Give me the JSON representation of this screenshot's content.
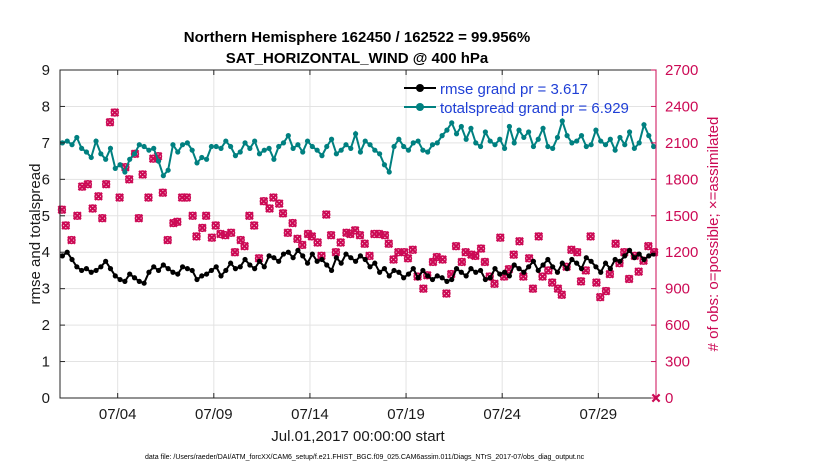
{
  "chart_data": {
    "type": "line",
    "title": "Northern Hemisphere 162450 / 162522 = 99.956%",
    "subtitle": "SAT_HORIZONTAL_WIND @ 400 hPa",
    "xlabel": "Jul.01,2017 00:00:00 start",
    "ylabel": "rmse and totalspread",
    "ylabel_right": "# of obs: o=possible; ×=assimilated",
    "footer": "data file: /Users/raeder/DAI/ATM_forcXX/CAM6_setup/f.e21.FHIST_BGC.f09_025.CAM6assim.011/Diags_NTrS_2017-07/obs_diag_output.nc",
    "xlim": [
      1.0,
      32.0
    ],
    "ylim": [
      0,
      9
    ],
    "ylim_right": [
      0,
      2700
    ],
    "x_ticks": [
      4,
      9,
      14,
      19,
      24,
      29
    ],
    "x_tick_labels": [
      "07/04",
      "07/09",
      "07/14",
      "07/19",
      "07/24",
      "07/29"
    ],
    "y_ticks": [
      0,
      1,
      2,
      3,
      4,
      5,
      6,
      7,
      8,
      9
    ],
    "y_ticks_right": [
      0,
      300,
      600,
      900,
      1200,
      1500,
      1800,
      2100,
      2400,
      2700
    ],
    "grid": true,
    "legend_position": "top-right",
    "colors": {
      "rmse": "#000000",
      "totalspread": "#008080",
      "obs": "#cc0a55",
      "legend_text": "#1f3fd6"
    },
    "series": [
      {
        "name": "rmse grand pr = 3.617",
        "axis": "left",
        "x": [
          1.125,
          1.375,
          1.625,
          1.875,
          2.125,
          2.375,
          2.625,
          2.875,
          3.125,
          3.375,
          3.625,
          3.875,
          4.125,
          4.375,
          4.625,
          4.875,
          5.125,
          5.375,
          5.625,
          5.875,
          6.125,
          6.375,
          6.625,
          6.875,
          7.125,
          7.375,
          7.625,
          7.875,
          8.125,
          8.375,
          8.625,
          8.875,
          9.125,
          9.375,
          9.625,
          9.875,
          10.125,
          10.375,
          10.625,
          10.875,
          11.125,
          11.375,
          11.625,
          11.875,
          12.125,
          12.375,
          12.625,
          12.875,
          13.125,
          13.375,
          13.625,
          13.875,
          14.125,
          14.375,
          14.625,
          14.875,
          15.125,
          15.375,
          15.625,
          15.875,
          16.125,
          16.375,
          16.625,
          16.875,
          17.125,
          17.375,
          17.625,
          17.875,
          18.125,
          18.375,
          18.625,
          18.875,
          19.125,
          19.375,
          19.625,
          19.875,
          20.125,
          20.375,
          20.625,
          20.875,
          21.125,
          21.375,
          21.625,
          21.875,
          22.125,
          22.375,
          22.625,
          22.875,
          23.125,
          23.375,
          23.625,
          23.875,
          24.125,
          24.375,
          24.625,
          24.875,
          25.125,
          25.375,
          25.625,
          25.875,
          26.125,
          26.375,
          26.625,
          26.875,
          27.125,
          27.375,
          27.625,
          27.875,
          28.125,
          28.375,
          28.625,
          28.875,
          29.125,
          29.375,
          29.625,
          29.875,
          30.125,
          30.375,
          30.625,
          30.875,
          31.125,
          31.375,
          31.625,
          31.875
        ],
        "values": [
          3.9,
          4.0,
          3.8,
          3.6,
          3.5,
          3.55,
          3.45,
          3.5,
          3.6,
          3.75,
          3.55,
          3.35,
          3.25,
          3.2,
          3.4,
          3.3,
          3.2,
          3.15,
          3.45,
          3.6,
          3.5,
          3.65,
          3.55,
          3.45,
          3.4,
          3.6,
          3.55,
          3.5,
          3.25,
          3.35,
          3.4,
          3.5,
          3.6,
          3.35,
          3.5,
          3.7,
          3.55,
          3.6,
          3.8,
          3.65,
          3.55,
          3.75,
          3.6,
          3.9,
          3.85,
          3.75,
          3.95,
          4.0,
          3.85,
          4.05,
          3.9,
          3.7,
          3.95,
          3.75,
          3.8,
          3.65,
          3.5,
          3.85,
          3.7,
          3.95,
          3.85,
          3.75,
          3.9,
          3.8,
          3.6,
          3.7,
          3.45,
          3.55,
          3.35,
          3.5,
          3.45,
          3.3,
          3.4,
          3.55,
          3.3,
          3.5,
          3.35,
          3.25,
          3.35,
          3.3,
          3.2,
          3.25,
          3.55,
          3.45,
          3.35,
          3.55,
          3.45,
          3.5,
          3.25,
          3.3,
          3.55,
          3.4,
          3.45,
          3.35,
          3.65,
          3.55,
          3.45,
          3.6,
          3.75,
          3.5,
          3.65,
          3.8,
          3.6,
          3.45,
          3.7,
          3.55,
          3.8,
          3.7,
          3.55,
          3.85,
          3.75,
          3.6,
          3.45,
          3.7,
          3.55,
          3.8,
          3.75,
          3.9,
          4.05,
          3.85,
          3.95,
          3.8,
          3.9,
          3.95
        ]
      },
      {
        "name": "totalspread grand pr = 6.929",
        "axis": "left",
        "x": [
          1.125,
          1.375,
          1.625,
          1.875,
          2.125,
          2.375,
          2.625,
          2.875,
          3.125,
          3.375,
          3.625,
          3.875,
          4.125,
          4.375,
          4.625,
          4.875,
          5.125,
          5.375,
          5.625,
          5.875,
          6.125,
          6.375,
          6.625,
          6.875,
          7.125,
          7.375,
          7.625,
          7.875,
          8.125,
          8.375,
          8.625,
          8.875,
          9.125,
          9.375,
          9.625,
          9.875,
          10.125,
          10.375,
          10.625,
          10.875,
          11.125,
          11.375,
          11.625,
          11.875,
          12.125,
          12.375,
          12.625,
          12.875,
          13.125,
          13.375,
          13.625,
          13.875,
          14.125,
          14.375,
          14.625,
          14.875,
          15.125,
          15.375,
          15.625,
          15.875,
          16.125,
          16.375,
          16.625,
          16.875,
          17.125,
          17.375,
          17.625,
          17.875,
          18.125,
          18.375,
          18.625,
          18.875,
          19.125,
          19.375,
          19.625,
          19.875,
          20.125,
          20.375,
          20.625,
          20.875,
          21.125,
          21.375,
          21.625,
          21.875,
          22.125,
          22.375,
          22.625,
          22.875,
          23.125,
          23.375,
          23.625,
          23.875,
          24.125,
          24.375,
          24.625,
          24.875,
          25.125,
          25.375,
          25.625,
          25.875,
          26.125,
          26.375,
          26.625,
          26.875,
          27.125,
          27.375,
          27.625,
          27.875,
          28.125,
          28.375,
          28.625,
          28.875,
          29.125,
          29.375,
          29.625,
          29.875,
          30.125,
          30.375,
          30.625,
          30.875,
          31.125,
          31.375,
          31.625,
          31.875
        ],
        "values": [
          7.0,
          7.05,
          6.95,
          7.15,
          6.85,
          6.75,
          6.6,
          7.05,
          6.7,
          6.55,
          6.85,
          6.3,
          6.4,
          6.2,
          6.55,
          6.7,
          6.95,
          6.9,
          6.8,
          6.85,
          6.5,
          6.1,
          6.25,
          6.95,
          6.75,
          6.95,
          7.0,
          6.8,
          6.45,
          6.6,
          6.55,
          6.9,
          6.9,
          6.85,
          7.05,
          6.9,
          6.65,
          6.75,
          7.0,
          6.85,
          7.05,
          6.7,
          6.8,
          6.85,
          6.55,
          6.9,
          7.0,
          7.2,
          6.85,
          6.95,
          6.75,
          7.05,
          6.9,
          6.8,
          6.65,
          6.9,
          7.1,
          6.7,
          6.8,
          6.95,
          6.85,
          7.25,
          6.75,
          7.05,
          6.95,
          6.8,
          6.7,
          6.4,
          6.2,
          6.9,
          7.1,
          6.9,
          6.8,
          7.0,
          7.05,
          6.8,
          6.75,
          6.95,
          7.0,
          7.2,
          7.35,
          7.55,
          7.25,
          7.45,
          7.1,
          7.4,
          7.0,
          6.9,
          7.3,
          7.05,
          6.95,
          7.1,
          6.85,
          7.45,
          7.0,
          7.35,
          7.15,
          7.3,
          6.9,
          7.1,
          7.4,
          6.9,
          6.85,
          7.15,
          7.6,
          7.2,
          7.0,
          7.05,
          7.2,
          6.9,
          6.95,
          7.35,
          7.05,
          6.95,
          7.1,
          6.8,
          7.15,
          6.95,
          7.3,
          6.85,
          7.0,
          7.5,
          7.2,
          6.9
        ]
      },
      {
        "name": "obs possible",
        "axis": "right",
        "x": [
          1.1,
          1.3,
          1.6,
          1.9,
          2.15,
          2.45,
          2.7,
          3.0,
          3.2,
          3.4,
          3.6,
          3.85,
          4.1,
          4.4,
          4.6,
          4.9,
          5.1,
          5.3,
          5.6,
          5.85,
          6.1,
          6.35,
          6.6,
          6.9,
          7.1,
          7.35,
          7.6,
          7.9,
          8.1,
          8.4,
          8.6,
          8.9,
          9.1,
          9.35,
          9.6,
          9.9,
          10.1,
          10.4,
          10.6,
          10.85,
          11.1,
          11.35,
          11.6,
          11.9,
          12.1,
          12.4,
          12.6,
          12.85,
          13.1,
          13.35,
          13.6,
          13.9,
          14.1,
          14.4,
          14.6,
          14.85,
          15.1,
          15.35,
          15.6,
          15.9,
          16.1,
          16.35,
          16.6,
          16.85,
          17.1,
          17.35,
          17.6,
          17.9,
          18.1,
          18.35,
          18.6,
          18.9,
          19.1,
          19.35,
          19.6,
          19.9,
          20.1,
          20.4,
          20.6,
          20.9,
          21.1,
          21.35,
          21.6,
          21.9,
          22.1,
          22.4,
          22.6,
          22.9,
          23.1,
          23.35,
          23.6,
          23.9,
          24.1,
          24.35,
          24.6,
          24.9,
          25.1,
          25.4,
          25.6,
          25.9,
          26.1,
          26.4,
          26.6,
          26.9,
          27.1,
          27.35,
          27.6,
          27.9,
          28.1,
          28.35,
          28.6,
          28.9,
          29.1,
          29.4,
          29.6,
          29.9,
          30.1,
          30.35,
          30.6,
          30.9,
          31.1,
          31.35,
          31.6,
          31.9
        ],
        "values": [
          1550,
          1420,
          1300,
          1500,
          1740,
          1760,
          1560,
          1660,
          1480,
          1760,
          2270,
          2350,
          1650,
          1900,
          1800,
          2010,
          1480,
          1840,
          1650,
          1970,
          1990,
          1690,
          1300,
          1440,
          1450,
          1650,
          1650,
          1500,
          1330,
          1400,
          1500,
          1320,
          1420,
          1350,
          1340,
          1360,
          1200,
          1300,
          1250,
          1500,
          1420,
          1150,
          1620,
          1560,
          1650,
          1600,
          1520,
          1360,
          1440,
          1310,
          1260,
          1350,
          1330,
          1280,
          1170,
          1510,
          1340,
          1200,
          1280,
          1360,
          1350,
          1380,
          1340,
          1270,
          1170,
          1350,
          1350,
          1340,
          1270,
          1140,
          1200,
          1200,
          1150,
          1220,
          1000,
          900,
          1010,
          1120,
          1160,
          1140,
          860,
          1020,
          1250,
          1120,
          1200,
          1180,
          1170,
          1230,
          1120,
          1000,
          940,
          1320,
          1000,
          1060,
          1180,
          1290,
          1000,
          1150,
          900,
          1330,
          1000,
          1050,
          950,
          900,
          850,
          1080,
          1220,
          1200,
          960,
          1050,
          1330,
          950,
          830,
          880,
          1020,
          1270,
          1110,
          1200,
          980,
          1170,
          1040,
          1130,
          1250,
          1200
        ],
        "marker": "o"
      },
      {
        "name": "obs assimilated",
        "axis": "right",
        "x": [
          1.1,
          1.3,
          1.6,
          1.9,
          2.15,
          2.45,
          2.7,
          3.0,
          3.2,
          3.4,
          3.6,
          3.85,
          4.1,
          4.4,
          4.6,
          4.9,
          5.1,
          5.3,
          5.6,
          5.85,
          6.1,
          6.35,
          6.6,
          6.9,
          7.1,
          7.35,
          7.6,
          7.9,
          8.1,
          8.4,
          8.6,
          8.9,
          9.1,
          9.35,
          9.6,
          9.9,
          10.1,
          10.4,
          10.6,
          10.85,
          11.1,
          11.35,
          11.6,
          11.9,
          12.1,
          12.4,
          12.6,
          12.85,
          13.1,
          13.35,
          13.6,
          13.9,
          14.1,
          14.4,
          14.6,
          14.85,
          15.1,
          15.35,
          15.6,
          15.9,
          16.1,
          16.35,
          16.6,
          16.85,
          17.1,
          17.35,
          17.6,
          17.9,
          18.1,
          18.35,
          18.6,
          18.9,
          19.1,
          19.35,
          19.6,
          19.9,
          20.1,
          20.4,
          20.6,
          20.9,
          21.1,
          21.35,
          21.6,
          21.9,
          22.1,
          22.4,
          22.6,
          22.9,
          23.1,
          23.35,
          23.6,
          23.9,
          24.1,
          24.35,
          24.6,
          24.9,
          25.1,
          25.4,
          25.6,
          25.9,
          26.1,
          26.4,
          26.6,
          26.9,
          27.1,
          27.35,
          27.6,
          27.9,
          28.1,
          28.35,
          28.6,
          28.9,
          29.1,
          29.4,
          29.6,
          29.9,
          30.1,
          30.35,
          30.6,
          30.9,
          31.1,
          31.35,
          31.6,
          31.9,
          32.0
        ],
        "values": [
          1550,
          1420,
          1300,
          1500,
          1740,
          1760,
          1560,
          1660,
          1480,
          1760,
          2270,
          2350,
          1650,
          1900,
          1800,
          2010,
          1480,
          1840,
          1650,
          1970,
          1990,
          1690,
          1300,
          1440,
          1450,
          1650,
          1650,
          1500,
          1330,
          1400,
          1500,
          1320,
          1420,
          1350,
          1340,
          1360,
          1200,
          1300,
          1250,
          1500,
          1420,
          1150,
          1620,
          1560,
          1650,
          1600,
          1520,
          1360,
          1440,
          1310,
          1260,
          1350,
          1330,
          1280,
          1170,
          1510,
          1340,
          1200,
          1280,
          1360,
          1350,
          1380,
          1340,
          1270,
          1170,
          1350,
          1350,
          1340,
          1270,
          1140,
          1200,
          1200,
          1150,
          1220,
          1000,
          900,
          1010,
          1120,
          1160,
          1140,
          860,
          1020,
          1250,
          1120,
          1200,
          1180,
          1170,
          1230,
          1120,
          1000,
          940,
          1320,
          1000,
          1060,
          1180,
          1290,
          1000,
          1150,
          900,
          1330,
          1000,
          1050,
          950,
          900,
          850,
          1080,
          1220,
          1200,
          960,
          1050,
          1330,
          950,
          830,
          880,
          1020,
          1270,
          1110,
          1200,
          980,
          1170,
          1040,
          1130,
          1250,
          1200,
          0
        ],
        "marker": "x"
      }
    ]
  }
}
